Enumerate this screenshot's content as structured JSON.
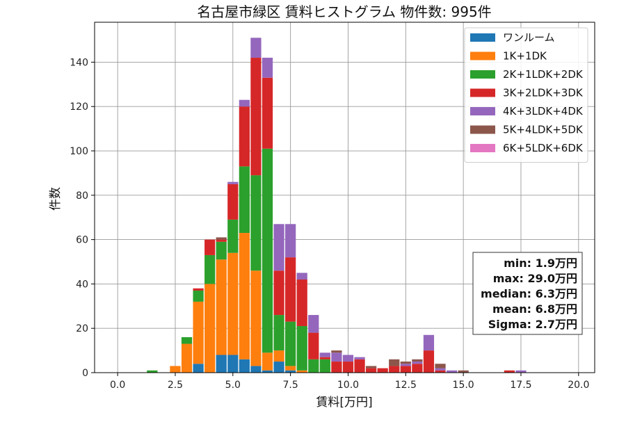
{
  "chart_data": {
    "type": "bar",
    "stacked": true,
    "title": "名古屋市緑区 賃料ヒストグラム 物件数: 995件",
    "xlabel": "賃料[万円]",
    "ylabel": "件数",
    "xlim": [
      -1.0,
      20.7
    ],
    "ylim": [
      0,
      158
    ],
    "xticks": [
      0.0,
      2.5,
      5.0,
      7.5,
      10.0,
      12.5,
      15.0,
      17.5,
      20.0
    ],
    "xtick_labels": [
      "0.0",
      "2.5",
      "5.0",
      "7.5",
      "10.0",
      "12.5",
      "15.0",
      "17.5",
      "20.0"
    ],
    "yticks": [
      0,
      20,
      40,
      60,
      80,
      100,
      120,
      140
    ],
    "ytick_labels": [
      "0",
      "20",
      "40",
      "60",
      "80",
      "100",
      "120",
      "140"
    ],
    "grid": true,
    "legend_position": "top-right",
    "bin_width": 0.5,
    "bins": [
      1.5,
      2.5,
      3.0,
      3.5,
      4.0,
      4.5,
      5.0,
      5.5,
      6.0,
      6.5,
      7.0,
      7.5,
      8.0,
      8.5,
      9.0,
      9.5,
      10.0,
      10.5,
      11.0,
      11.5,
      12.0,
      12.5,
      13.0,
      13.5,
      14.0,
      14.5,
      15.0,
      17.0,
      17.5
    ],
    "series": [
      {
        "name": "ワンルーム",
        "color": "#1f77b4",
        "values": [
          0,
          0,
          0,
          4,
          0,
          8,
          8,
          6,
          3,
          1,
          5,
          1,
          0,
          0,
          0,
          0,
          0,
          0,
          0,
          0,
          0,
          0,
          0,
          0,
          0,
          0,
          0,
          0,
          0
        ]
      },
      {
        "name": "1K+1DK",
        "color": "#ff7f0e",
        "values": [
          0,
          3,
          13,
          28,
          40,
          43,
          46,
          57,
          43,
          8,
          5,
          2,
          1,
          0,
          0,
          0,
          0,
          0,
          0,
          0,
          0,
          0,
          0,
          0,
          0,
          0,
          0,
          0,
          0
        ]
      },
      {
        "name": "2K+1LDK+2DK",
        "color": "#2ca02c",
        "values": [
          1,
          0,
          3,
          5,
          13,
          8,
          15,
          30,
          43,
          92,
          16,
          20,
          20,
          6,
          6,
          0,
          0,
          0,
          0,
          0,
          0,
          0,
          0,
          0,
          0,
          0,
          0,
          0,
          0
        ]
      },
      {
        "name": "3K+2LDK+3DK",
        "color": "#d62728",
        "values": [
          0,
          0,
          0,
          1,
          7,
          1,
          16,
          27,
          53,
          32,
          20,
          29,
          21,
          12,
          1,
          5,
          5,
          6,
          2,
          2,
          3,
          3,
          4,
          10,
          1,
          0,
          0,
          1,
          0
        ]
      },
      {
        "name": "4K+3LDK+4DK",
        "color": "#9467bd",
        "values": [
          0,
          0,
          0,
          0,
          0,
          0,
          1,
          3,
          9,
          9,
          21,
          15,
          3,
          8,
          2,
          4,
          3,
          1,
          0,
          0,
          0,
          1,
          1,
          7,
          1,
          1,
          0,
          0,
          1
        ]
      },
      {
        "name": "5K+4LDK+5DK",
        "color": "#8c564b",
        "values": [
          0,
          0,
          0,
          0,
          0,
          1,
          0,
          0,
          0,
          0,
          0,
          0,
          0,
          0,
          0,
          1,
          0,
          0,
          1,
          0,
          3,
          1,
          1,
          0,
          2,
          0,
          1,
          0,
          0
        ]
      },
      {
        "name": "6K+5LDK+6DK",
        "color": "#e377c2",
        "values": [
          0,
          0,
          0,
          0,
          0,
          0,
          0,
          0,
          0,
          0,
          0,
          0,
          0,
          0,
          0,
          0,
          0,
          0,
          0,
          0,
          0,
          0,
          0,
          0,
          0,
          0,
          0,
          0,
          0
        ]
      }
    ],
    "annotations": {
      "stats": [
        "min: 1.9万円",
        "max: 29.0万円",
        "median: 6.3万円",
        "mean: 6.8万円",
        "Sigma: 2.7万円"
      ]
    }
  }
}
